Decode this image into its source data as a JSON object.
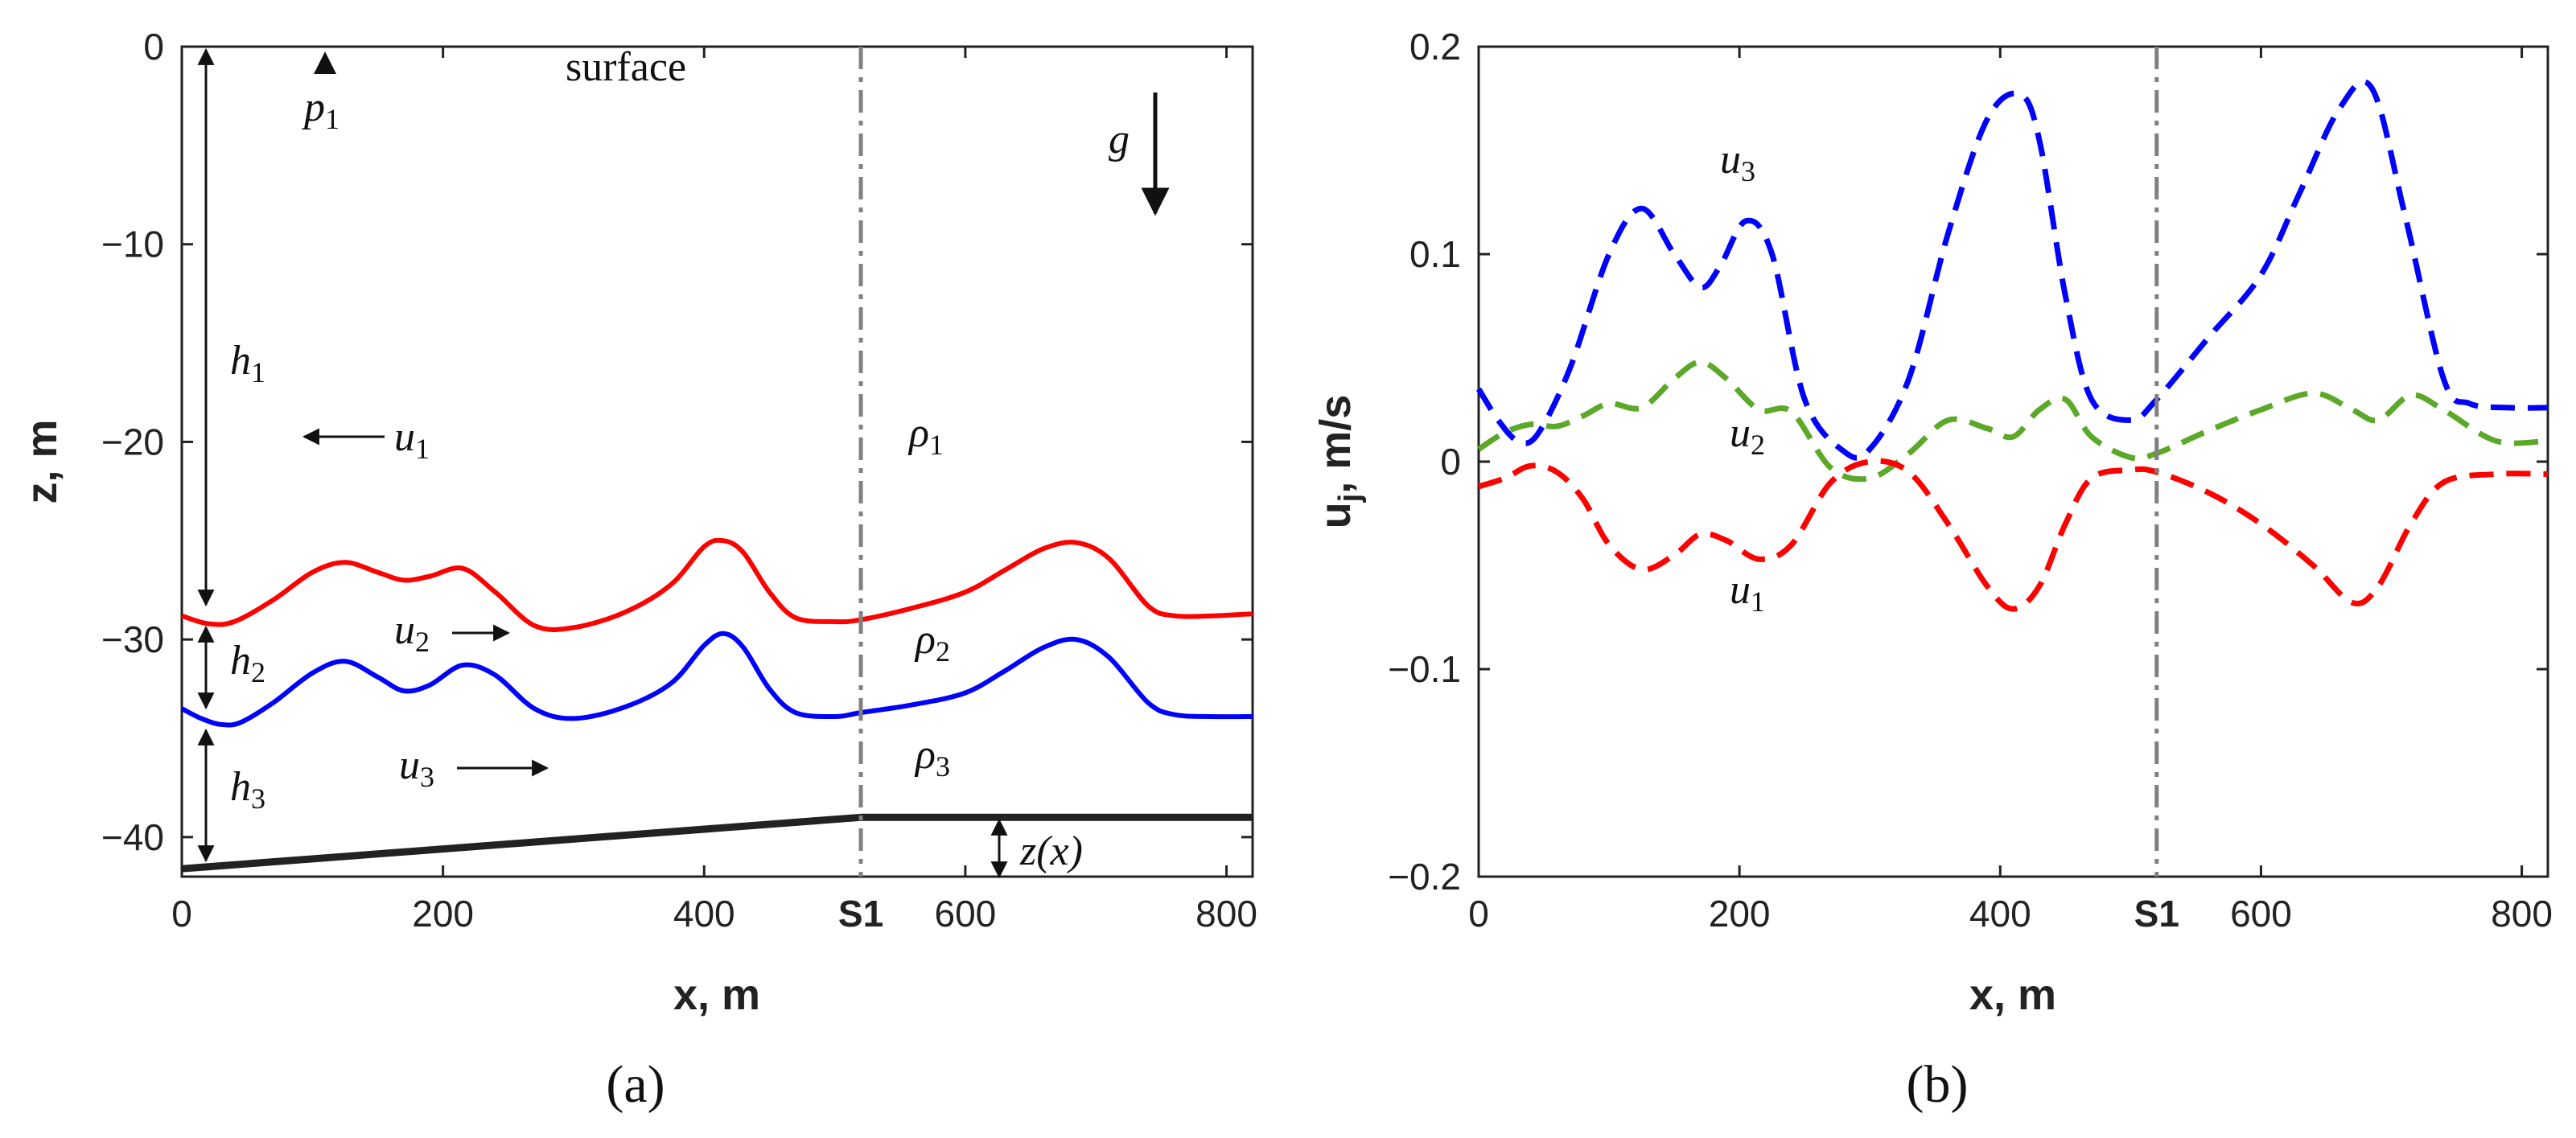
{
  "chart_data": [
    {
      "type": "line",
      "panel_label": "(a)",
      "xlabel": "x, m",
      "ylabel": "z, m",
      "xlim": [
        0,
        820
      ],
      "ylim": [
        -42,
        0
      ],
      "xticks": [
        0,
        200,
        400,
        600,
        800
      ],
      "xtick_labels": [
        "0",
        "200",
        "400",
        "600",
        "800"
      ],
      "yticks": [
        0,
        -10,
        -20,
        -30,
        -40
      ],
      "ytick_labels": [
        "0",
        "−10",
        "−20",
        "−30",
        "−40"
      ],
      "vline": {
        "x": 520,
        "label": "S1",
        "style": "dash-dot",
        "color": "#808080"
      },
      "series": [
        {
          "color": "#ff0000",
          "x": [
            0,
            20,
            40,
            70,
            100,
            125,
            150,
            170,
            190,
            215,
            240,
            270,
            300,
            340,
            375,
            400,
            415,
            430,
            450,
            470,
            500,
            520,
            560,
            600,
            630,
            660,
            685,
            710,
            740,
            760,
            790,
            820
          ],
          "y": [
            -28.8,
            -29.2,
            -29.1,
            -28.0,
            -26.6,
            -26.1,
            -26.6,
            -27.0,
            -26.8,
            -26.4,
            -27.6,
            -29.3,
            -29.4,
            -28.6,
            -27.2,
            -25.3,
            -25.0,
            -25.6,
            -27.6,
            -28.9,
            -29.1,
            -29.0,
            -28.4,
            -27.6,
            -26.5,
            -25.4,
            -25.1,
            -25.9,
            -28.3,
            -28.8,
            -28.8,
            -28.7
          ]
        },
        {
          "color": "#0000ff",
          "x": [
            0,
            15,
            30,
            45,
            70,
            100,
            125,
            150,
            170,
            190,
            215,
            240,
            270,
            300,
            340,
            375,
            400,
            415,
            430,
            450,
            470,
            500,
            520,
            560,
            600,
            630,
            660,
            685,
            710,
            740,
            760,
            790,
            820
          ],
          "y": [
            -33.5,
            -34.0,
            -34.3,
            -34.2,
            -33.2,
            -31.7,
            -31.1,
            -31.9,
            -32.6,
            -32.3,
            -31.3,
            -31.8,
            -33.5,
            -34.0,
            -33.4,
            -32.2,
            -30.3,
            -29.7,
            -30.4,
            -32.5,
            -33.7,
            -33.9,
            -33.7,
            -33.3,
            -32.7,
            -31.6,
            -30.4,
            -30.0,
            -30.9,
            -33.2,
            -33.8,
            -33.9,
            -33.9
          ]
        },
        {
          "color": "#222222",
          "x": [
            0,
            520,
            820
          ],
          "y": [
            -41.6,
            -39.0,
            -39.0
          ]
        }
      ],
      "annotations": {
        "surface": "surface",
        "p1_base": "p",
        "p1_sub": "1",
        "g": "g",
        "h1_base": "h",
        "h1_sub": "1",
        "h2_base": "h",
        "h2_sub": "2",
        "h3_base": "h",
        "h3_sub": "3",
        "u1_base": "u",
        "u1_sub": "1",
        "u2_base": "u",
        "u2_sub": "2",
        "u3_base": "u",
        "u3_sub": "3",
        "rho1_base": "ρ",
        "rho1_sub": "1",
        "rho2_base": "ρ",
        "rho2_sub": "2",
        "rho3_base": "ρ",
        "rho3_sub": "3",
        "zx": "z(x)"
      }
    },
    {
      "type": "line",
      "panel_label": "(b)",
      "xlabel": "x, m",
      "ylabel_base": "u",
      "ylabel_sub": "j",
      "ylabel_rest": ", m/s",
      "xlim": [
        0,
        820
      ],
      "ylim": [
        -0.2,
        0.2
      ],
      "xticks": [
        0,
        200,
        400,
        600,
        800
      ],
      "xtick_labels": [
        "0",
        "200",
        "400",
        "600",
        "800"
      ],
      "yticks": [
        0.2,
        0.1,
        0,
        -0.1,
        -0.2
      ],
      "ytick_labels": [
        "0.2",
        "0.1",
        "0",
        "−0.1",
        "−0.2"
      ],
      "vline": {
        "x": 520,
        "label": "S1",
        "style": "dash-dot",
        "color": "#808080"
      },
      "series": [
        {
          "color": "#0000ff",
          "style": "dashed",
          "x": [
            0,
            15,
            30,
            45,
            70,
            100,
            125,
            150,
            170,
            185,
            205,
            225,
            250,
            280,
            300,
            330,
            360,
            390,
            415,
            430,
            450,
            470,
            500,
            520,
            560,
            600,
            630,
            660,
            685,
            710,
            740,
            760,
            790,
            820
          ],
          "y": [
            0.035,
            0.02,
            0.01,
            0.013,
            0.045,
            0.1,
            0.122,
            0.1,
            0.084,
            0.094,
            0.116,
            0.1,
            0.03,
            0.005,
            0.006,
            0.04,
            0.11,
            0.165,
            0.177,
            0.155,
            0.08,
            0.03,
            0.02,
            0.03,
            0.06,
            0.09,
            0.13,
            0.17,
            0.18,
            0.12,
            0.04,
            0.028,
            0.026,
            0.026
          ]
        },
        {
          "color": "#5ca829",
          "style": "dashed",
          "x": [
            0,
            20,
            40,
            60,
            80,
            100,
            125,
            150,
            170,
            190,
            215,
            240,
            270,
            300,
            330,
            360,
            390,
            410,
            430,
            450,
            470,
            500,
            520,
            560,
            600,
            640,
            670,
            690,
            715,
            740,
            780,
            820
          ],
          "y": [
            0.006,
            0.014,
            0.018,
            0.017,
            0.022,
            0.028,
            0.026,
            0.04,
            0.048,
            0.04,
            0.025,
            0.024,
            -0.003,
            -0.008,
            0.004,
            0.02,
            0.016,
            0.012,
            0.025,
            0.03,
            0.012,
            0.002,
            0.004,
            0.015,
            0.025,
            0.033,
            0.025,
            0.02,
            0.032,
            0.025,
            0.01,
            0.01
          ]
        },
        {
          "color": "#ff0000",
          "style": "dashed",
          "x": [
            0,
            20,
            40,
            60,
            80,
            100,
            125,
            150,
            170,
            190,
            215,
            240,
            270,
            300,
            330,
            360,
            390,
            410,
            430,
            450,
            470,
            500,
            520,
            560,
            600,
            640,
            670,
            690,
            715,
            740,
            780,
            820
          ],
          "y": [
            -0.012,
            -0.008,
            -0.002,
            -0.005,
            -0.018,
            -0.04,
            -0.052,
            -0.045,
            -0.035,
            -0.038,
            -0.047,
            -0.04,
            -0.01,
            0.0,
            -0.005,
            -0.03,
            -0.06,
            -0.071,
            -0.06,
            -0.03,
            -0.008,
            -0.004,
            -0.005,
            -0.015,
            -0.03,
            -0.05,
            -0.068,
            -0.06,
            -0.03,
            -0.01,
            -0.006,
            -0.006
          ]
        }
      ],
      "annotations": {
        "u3_base": "u",
        "u3_sub": "3",
        "u2_base": "u",
        "u2_sub": "2",
        "u1_base": "u",
        "u1_sub": "1"
      }
    }
  ]
}
